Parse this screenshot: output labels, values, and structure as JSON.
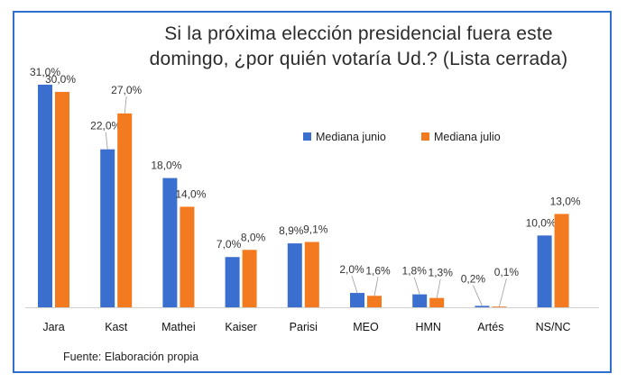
{
  "chart_data": {
    "type": "bar",
    "title_line1": "Si la próxima elección presidencial fuera este",
    "title_line2": "domingo, ¿por quién votaría Ud.? (Lista cerrada)",
    "categories": [
      "Jara",
      "Kast",
      "Mathei",
      "Kaiser",
      "Parisi",
      "MEO",
      "HMN",
      "Artés",
      "NS/NC"
    ],
    "series": [
      {
        "name": "Mediana junio",
        "color": "#3a6fd0",
        "values": [
          31.0,
          22.0,
          18.0,
          7.0,
          8.9,
          2.0,
          1.8,
          0.2,
          10.0
        ],
        "labels": [
          "31,0%",
          "22,0%",
          "18,0%",
          "7,0%",
          "8,9%",
          "2,0%",
          "1,8%",
          "0,2%",
          "10,0%"
        ]
      },
      {
        "name": "Mediana julio",
        "color": "#f47a20",
        "values": [
          30.0,
          27.0,
          14.0,
          8.0,
          9.1,
          1.6,
          1.3,
          0.1,
          13.0
        ],
        "labels": [
          "30,0%",
          "27,0%",
          "14,0%",
          "8,0%",
          "9,1%",
          "1,6%",
          "1,3%",
          "0,1%",
          "13,0%"
        ]
      }
    ],
    "ylim": [
      0,
      31
    ],
    "grid": false,
    "legend_position": "center-right"
  },
  "source": "Fuente: Elaboración propia"
}
